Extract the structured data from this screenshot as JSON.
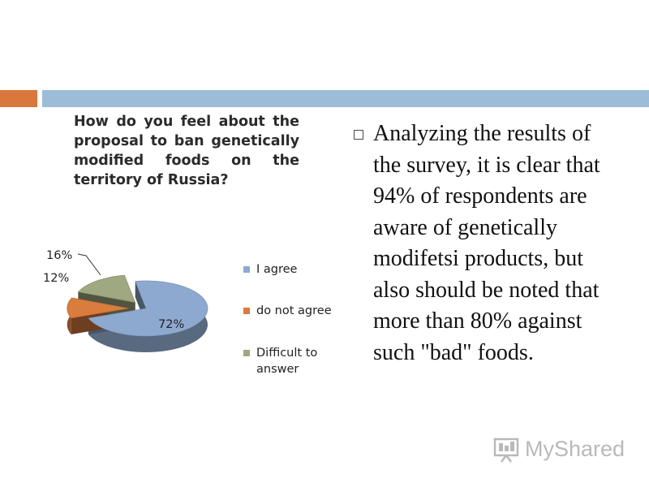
{
  "colors": {
    "accent_orange": "#d9773c",
    "accent_blue": "#9cbcd8"
  },
  "chart_data": {
    "type": "pie",
    "title": "How do you feel about the proposal to ban genetically modified foods on the territory of Russia?",
    "slices": [
      {
        "label": "I agree",
        "value": 72,
        "color": "#8ea9cf",
        "value_label": "72%"
      },
      {
        "label": "do not agree",
        "value": 12,
        "color": "#d97c3d",
        "value_label": "12%"
      },
      {
        "label": "Difficult to answer",
        "value": 16,
        "color": "#9fa880",
        "value_label": "16%"
      }
    ],
    "legend_position": "right",
    "three_d": true
  },
  "body_text": "Analyzing the results of the survey, it is clear that 94% of respondents are aware of genetically modifetsi products, but also should be noted that more than 80% against such \"bad\" foods.",
  "watermark": {
    "icon": "presentation-board-icon",
    "text": "MyShared"
  }
}
